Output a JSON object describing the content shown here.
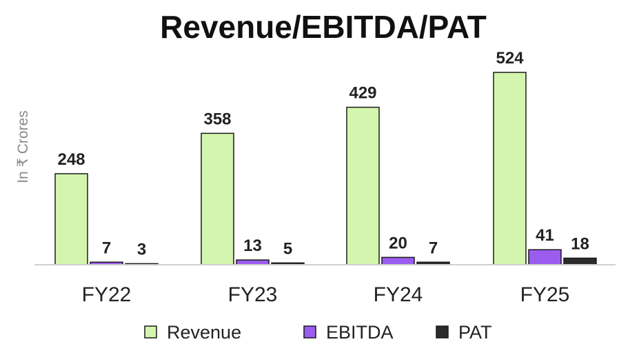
{
  "chart_data": {
    "type": "bar",
    "title": "Revenue/EBITDA/PAT",
    "ylabel": "In ₹ Crores",
    "xlabel": "",
    "categories": [
      "FY22",
      "FY23",
      "FY24",
      "FY25"
    ],
    "series": [
      {
        "name": "Revenue",
        "color": "#d4f5ad",
        "values": [
          248,
          358,
          429,
          524
        ]
      },
      {
        "name": "EBITDA",
        "color": "#9b5cf0",
        "values": [
          7,
          13,
          20,
          41
        ]
      },
      {
        "name": "PAT",
        "color": "#2b2b2b",
        "values": [
          3,
          5,
          7,
          18
        ]
      }
    ],
    "ylim": [
      0,
      524
    ],
    "grid": false,
    "legend": "bottom-center"
  }
}
